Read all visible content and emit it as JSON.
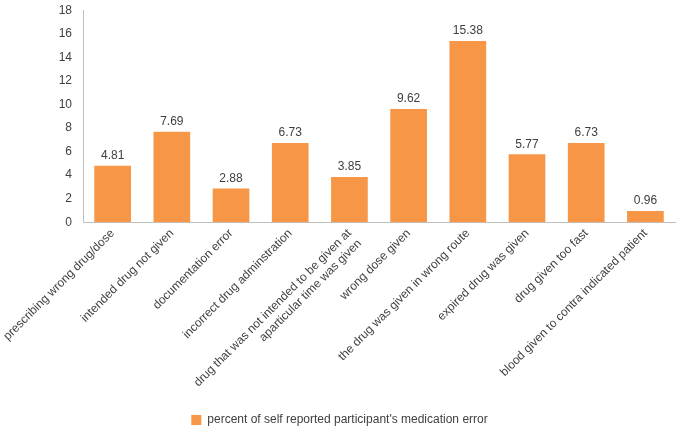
{
  "chart_data": {
    "type": "bar",
    "categories": [
      "prescribing wrong drug/dose",
      "intended drug not given",
      "documentation error",
      "incorrect drug adminstration",
      "drug that was not intended to be given at aparticular time was given",
      "wrong dose given",
      "the drug was given in wrong route",
      "expired drug was given",
      "drug given too fast",
      "blood given to contra indicated patient"
    ],
    "series": [
      {
        "name": "percent of self reported participant's medication error",
        "color": "#f79646",
        "values": [
          4.81,
          7.69,
          2.88,
          6.73,
          3.85,
          9.62,
          15.38,
          5.77,
          6.73,
          0.96
        ]
      }
    ],
    "ylim": [
      0,
      18
    ],
    "yticks": [
      0,
      2,
      4,
      6,
      8,
      10,
      12,
      14,
      16,
      18
    ],
    "grid": false,
    "legend": "bottom",
    "data_labels": true
  }
}
